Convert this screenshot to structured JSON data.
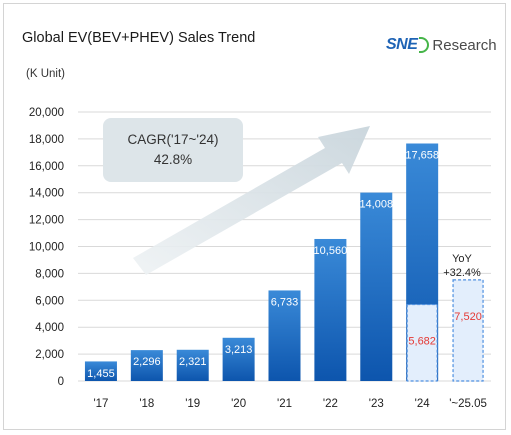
{
  "header": {
    "title": "Global EV(BEV+PHEV) Sales Trend",
    "unit_label": "(K Unit)",
    "logo": {
      "mark": "SNE",
      "text": "Research"
    }
  },
  "annotations": {
    "cagr_line1": "CAGR('17~'24)",
    "cagr_line2": "42.8%",
    "yoy_line1": "YoY",
    "yoy_line2": "+32.4%"
  },
  "colors": {
    "bar_top": "#3a8ad8",
    "bar_bottom": "#0d55ad",
    "partial_fill": "#e3eefc",
    "partial_border": "#4d8fe0",
    "partial_label": "#e53935",
    "grid": "#d9d9d9",
    "cagr_box": "#dde5e9",
    "logo_green": "#46b549"
  },
  "chart_data": {
    "type": "bar",
    "title": "Global EV(BEV+PHEV) Sales Trend",
    "ylabel": "(K Unit)",
    "ylim": [
      0,
      20000
    ],
    "yticks": [
      "0",
      "2,000",
      "4,000",
      "6,000",
      "8,000",
      "10,000",
      "12,000",
      "14,000",
      "16,000",
      "18,000",
      "20,000"
    ],
    "grid": true,
    "categories": [
      "'17",
      "'18",
      "'19",
      "'20",
      "'21",
      "'22",
      "'23",
      "'24",
      "'~25.05"
    ],
    "values": [
      1455,
      2296,
      2321,
      3213,
      6733,
      10560,
      14008,
      17658,
      null
    ],
    "value_labels": [
      "1,455",
      "2,296",
      "2,321",
      "3,213",
      "6,733",
      "10,560",
      "14,008",
      "17,658",
      ""
    ],
    "partial_series": {
      "values": [
        null,
        null,
        null,
        null,
        null,
        null,
        null,
        5682,
        7520
      ],
      "labels": [
        "",
        "",
        "",
        "",
        "",
        "",
        "",
        "5,682",
        "7,520"
      ]
    }
  }
}
